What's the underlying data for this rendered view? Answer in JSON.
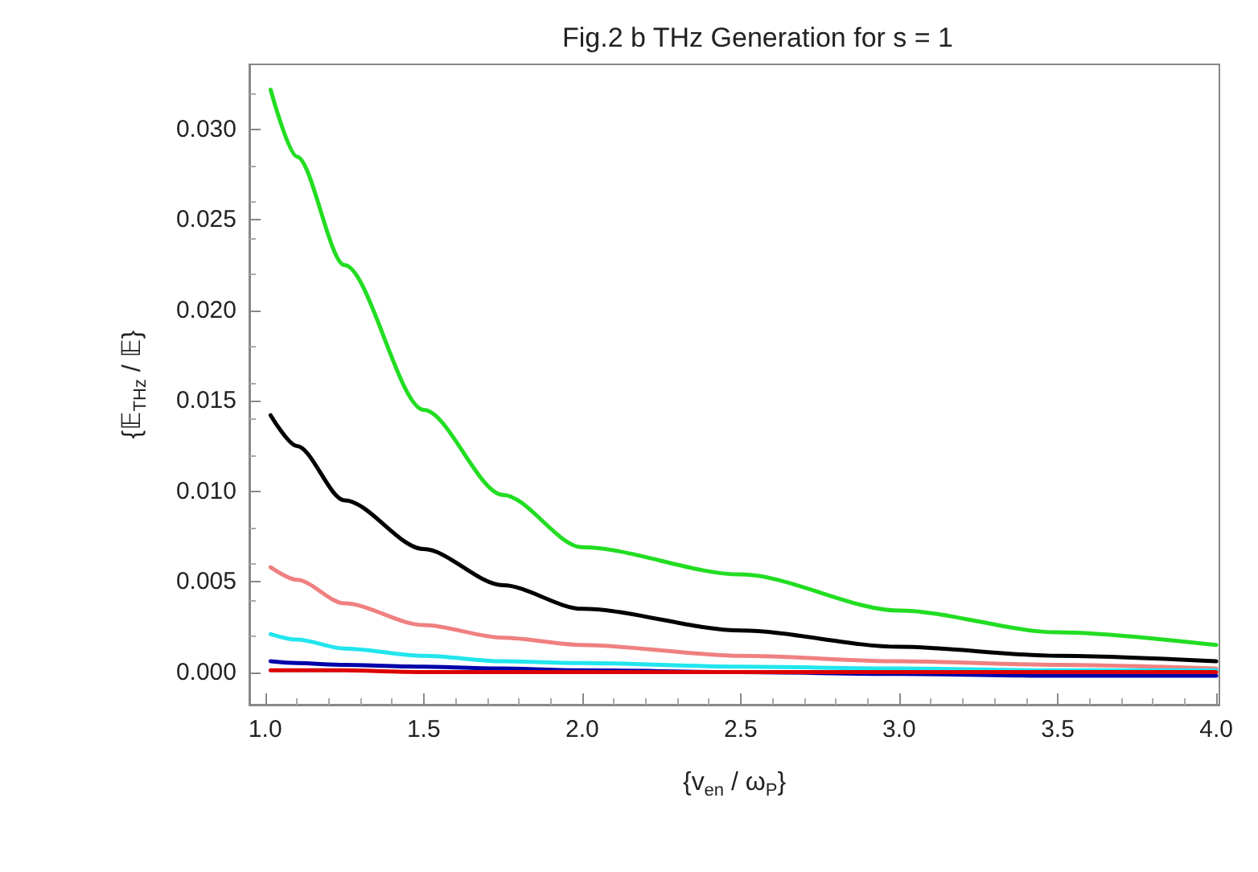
{
  "chart_data": {
    "type": "line",
    "title": "Fig.2 b THz Generation for s = 1",
    "xlabel": "{v$_{en}$ / ω$_{P}$}",
    "ylabel": "{𝔼$_{THz}$ / 𝔼}",
    "x": [
      1.017,
      1.1,
      1.25,
      1.5,
      1.75,
      2.0,
      2.5,
      3.0,
      3.5,
      4.0
    ],
    "series": [
      {
        "color": "#22dd22",
        "values": [
          0.0322,
          0.0285,
          0.0225,
          0.0145,
          0.0098,
          0.0069,
          0.0054,
          0.0034,
          0.0022,
          0.0015
        ]
      },
      {
        "color": "#000000",
        "values": [
          0.0142,
          0.0125,
          0.0095,
          0.0068,
          0.0048,
          0.0035,
          0.0023,
          0.0014,
          0.0009,
          0.0006
        ]
      },
      {
        "color": "#f08080",
        "values": [
          0.0058,
          0.0051,
          0.0038,
          0.0026,
          0.0019,
          0.0015,
          0.0009,
          0.0006,
          0.0004,
          0.0002
        ]
      },
      {
        "color": "#22e5ee",
        "values": [
          0.0021,
          0.0018,
          0.0013,
          0.0009,
          0.0006,
          0.0005,
          0.0003,
          0.0002,
          0.0001,
          0.0001
        ]
      },
      {
        "color": "#0000aa",
        "values": [
          0.0006,
          0.0005,
          0.0004,
          0.0003,
          0.0002,
          0.0001,
          0.0,
          -0.0001,
          -0.0002,
          -0.0002
        ]
      },
      {
        "color": "#dd0000",
        "values": [
          0.0001,
          0.0001,
          0.0001,
          0.0,
          0.0,
          0.0,
          0.0,
          0.0,
          0.0,
          0.0
        ]
      }
    ],
    "xlim": [
      0.95,
      4.01
    ],
    "xticks": [
      {
        "value": 1,
        "label": "1.0"
      },
      1.5,
      {
        "value": 2,
        "label": "2.0"
      },
      2.5,
      {
        "value": 3,
        "label": "3.0"
      },
      3.5,
      {
        "value": 4,
        "label": "4.0"
      }
    ],
    "ylim": [
      -0.0018,
      0.0336
    ],
    "yticks": [
      {
        "value": 0,
        "label": "0.000"
      },
      0.005,
      {
        "value": 0.01,
        "label": "0.010"
      },
      0.015,
      {
        "value": 0.02,
        "label": "0.020"
      },
      0.025,
      {
        "value": 0.03,
        "label": "0.030"
      }
    ],
    "grid": false,
    "marker": "none",
    "line_style": "solid"
  }
}
